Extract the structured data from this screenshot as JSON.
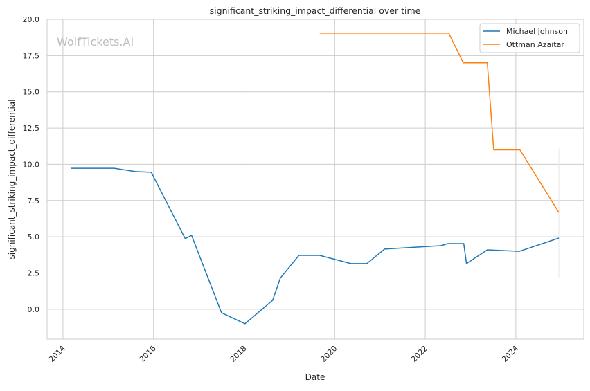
{
  "chart_data": {
    "type": "line",
    "title": "significant_striking_impact_differential over time",
    "xlabel": "Date",
    "ylabel": "significant_striking_impact_differential",
    "watermark": "WolfTickets.AI",
    "xlim": [
      2013.65,
      2025.5
    ],
    "ylim": [
      -2.06,
      20.0
    ],
    "xticks": [
      2014,
      2016,
      2018,
      2020,
      2022,
      2024
    ],
    "xtick_labels": [
      "2014",
      "2016",
      "2018",
      "2020",
      "2022",
      "2024"
    ],
    "yticks": [
      0,
      2.5,
      5,
      7.5,
      10,
      12.5,
      15,
      17.5,
      20
    ],
    "ytick_labels": [
      "0.0",
      "2.5",
      "5.0",
      "7.5",
      "10.0",
      "12.5",
      "15.0",
      "17.5",
      "20.0"
    ],
    "grid": true,
    "legend_position": "top-right",
    "series": [
      {
        "name": "Michael Johnson",
        "color": "#1f77b4",
        "x": [
          2014.18,
          2015.13,
          2015.6,
          2015.95,
          2016.7,
          2016.84,
          2017.5,
          2018.02,
          2018.63,
          2018.8,
          2019.21,
          2019.67,
          2020.36,
          2020.71,
          2021.1,
          2022.35,
          2022.5,
          2022.85,
          2022.91,
          2023.37,
          2024.08,
          2024.95
        ],
        "y": [
          9.73,
          9.73,
          9.5,
          9.45,
          4.87,
          5.1,
          -0.24,
          -1.0,
          0.62,
          2.15,
          3.72,
          3.72,
          3.15,
          3.15,
          4.15,
          4.39,
          4.53,
          4.53,
          3.15,
          4.1,
          4.0,
          4.91
        ]
      },
      {
        "name": "Ottman Azaitar",
        "color": "#ff7f0e",
        "x": [
          2019.67,
          2022.52,
          2022.84,
          2023.37,
          2023.51,
          2024.09,
          2024.95
        ],
        "y": [
          19.05,
          19.05,
          17.0,
          17.0,
          11.0,
          11.0,
          6.68
        ]
      }
    ],
    "error_band": {
      "x": 2024.95,
      "y_low": 2.2,
      "y_high": 11.1,
      "color": "#e6e6e6"
    }
  }
}
